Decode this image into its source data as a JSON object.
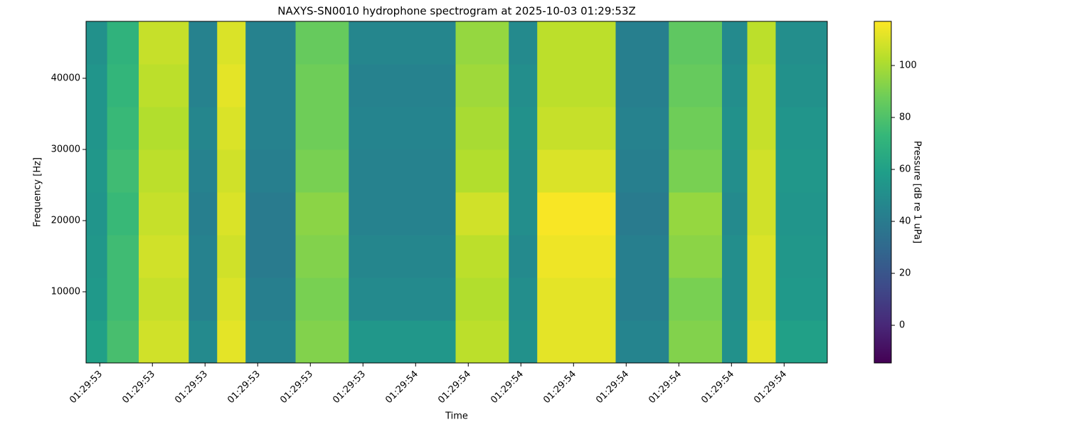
{
  "chart_data": {
    "type": "spectrogram",
    "title": "NAXYS-SN0010 hydrophone spectrogram at 2025-10-03 01:29:53Z",
    "x_label": "Time",
    "y_label": "Frequency [Hz]",
    "colorbar_label": "Pressure [dB re 1 uPa]",
    "colormap": "viridis",
    "xlim": [
      53.374,
      54.782
    ],
    "xticks": [
      {
        "value": 53.4,
        "label": "01:29:53"
      },
      {
        "value": 53.5,
        "label": "01:29:53"
      },
      {
        "value": 53.6,
        "label": "01:29:53"
      },
      {
        "value": 53.7,
        "label": "01:29:53"
      },
      {
        "value": 53.8,
        "label": "01:29:53"
      },
      {
        "value": 53.9,
        "label": "01:29:53"
      },
      {
        "value": 54.0,
        "label": "01:29:54"
      },
      {
        "value": 54.1,
        "label": "01:29:54"
      },
      {
        "value": 54.2,
        "label": "01:29:54"
      },
      {
        "value": 54.3,
        "label": "01:29:54"
      },
      {
        "value": 54.4,
        "label": "01:29:54"
      },
      {
        "value": 54.5,
        "label": "01:29:54"
      },
      {
        "value": 54.6,
        "label": "01:29:54"
      },
      {
        "value": 54.7,
        "label": "01:29:54"
      }
    ],
    "ylim": [
      0,
      48000
    ],
    "yticks": [
      10000,
      20000,
      30000,
      40000
    ],
    "clim": [
      -14.5,
      117
    ],
    "cticks": [
      0,
      20,
      40,
      60,
      80,
      100
    ],
    "xbins": [
      53.374,
      53.414,
      53.474,
      53.569,
      53.623,
      53.677,
      53.772,
      53.873,
      54.076,
      54.177,
      54.231,
      54.38,
      54.481,
      54.582,
      54.63,
      54.684,
      54.782
    ],
    "ybins": [
      0,
      6000,
      12000,
      18000,
      24000,
      30000,
      36000,
      42000,
      48000
    ],
    "values": [
      [
        60,
        78,
        108,
        48,
        112,
        45,
        92,
        55,
        104,
        52,
        112,
        45,
        92,
        52,
        112,
        60
      ],
      [
        56,
        76,
        106,
        44,
        110,
        42,
        90,
        48,
        102,
        50,
        112,
        42,
        90,
        50,
        110,
        56
      ],
      [
        55,
        76,
        108,
        44,
        108,
        40,
        92,
        46,
        104,
        48,
        114,
        42,
        94,
        50,
        110,
        55
      ],
      [
        54,
        74,
        106,
        42,
        110,
        40,
        94,
        44,
        108,
        50,
        116,
        40,
        96,
        48,
        108,
        54
      ],
      [
        55,
        76,
        104,
        44,
        108,
        42,
        90,
        44,
        102,
        50,
        110,
        42,
        90,
        50,
        108,
        55
      ],
      [
        54,
        74,
        102,
        46,
        110,
        44,
        88,
        45,
        100,
        52,
        106,
        44,
        88,
        52,
        106,
        54
      ],
      [
        54,
        72,
        104,
        44,
        112,
        44,
        88,
        44,
        98,
        50,
        104,
        42,
        86,
        50,
        106,
        52
      ],
      [
        52,
        70,
        106,
        44,
        110,
        44,
        86,
        46,
        96,
        48,
        104,
        42,
        84,
        48,
        104,
        50
      ]
    ]
  }
}
